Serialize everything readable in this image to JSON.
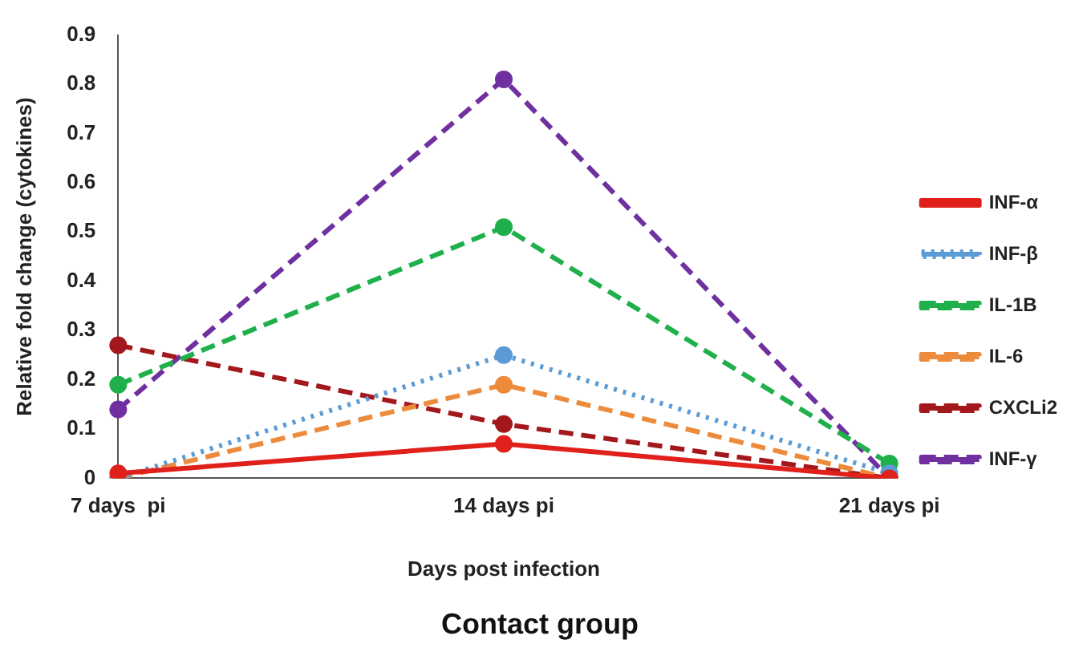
{
  "chart_data": {
    "type": "line",
    "title": "Contact group",
    "xlabel": "Days post infection",
    "ylabel": "Relative fold change (cytokines)",
    "categories": [
      "7 days  pi",
      "14 days pi",
      "21 days pi"
    ],
    "series": [
      {
        "name": "INF-α",
        "color": "#e0201b",
        "line_style": "solid",
        "values": [
          0.01,
          0.07,
          0
        ]
      },
      {
        "name": "INF-β",
        "color": "#5b9bd5",
        "line_style": "dotted",
        "values": [
          0,
          0.25,
          0.01
        ]
      },
      {
        "name": "IL-1B",
        "color": "#1fb04b",
        "line_style": "dashed",
        "values": [
          0.19,
          0.51,
          0.03
        ]
      },
      {
        "name": "IL-6",
        "color": "#ed8b3c",
        "line_style": "dashed",
        "values": [
          0,
          0.19,
          0
        ]
      },
      {
        "name": "CXCLi2",
        "color": "#a3181c",
        "line_style": "dashed",
        "values": [
          0.27,
          0.11,
          0
        ]
      },
      {
        "name": "INF-γ",
        "color": "#7030a0",
        "line_style": "dashed",
        "values": [
          0.14,
          0.81,
          0
        ]
      }
    ],
    "ylim": [
      0,
      0.9
    ],
    "yticks": [
      0,
      0.1,
      0.2,
      0.3,
      0.4,
      0.5,
      0.6,
      0.7,
      0.8,
      0.9
    ],
    "grid": false,
    "legend": "right",
    "marker": "circle"
  }
}
